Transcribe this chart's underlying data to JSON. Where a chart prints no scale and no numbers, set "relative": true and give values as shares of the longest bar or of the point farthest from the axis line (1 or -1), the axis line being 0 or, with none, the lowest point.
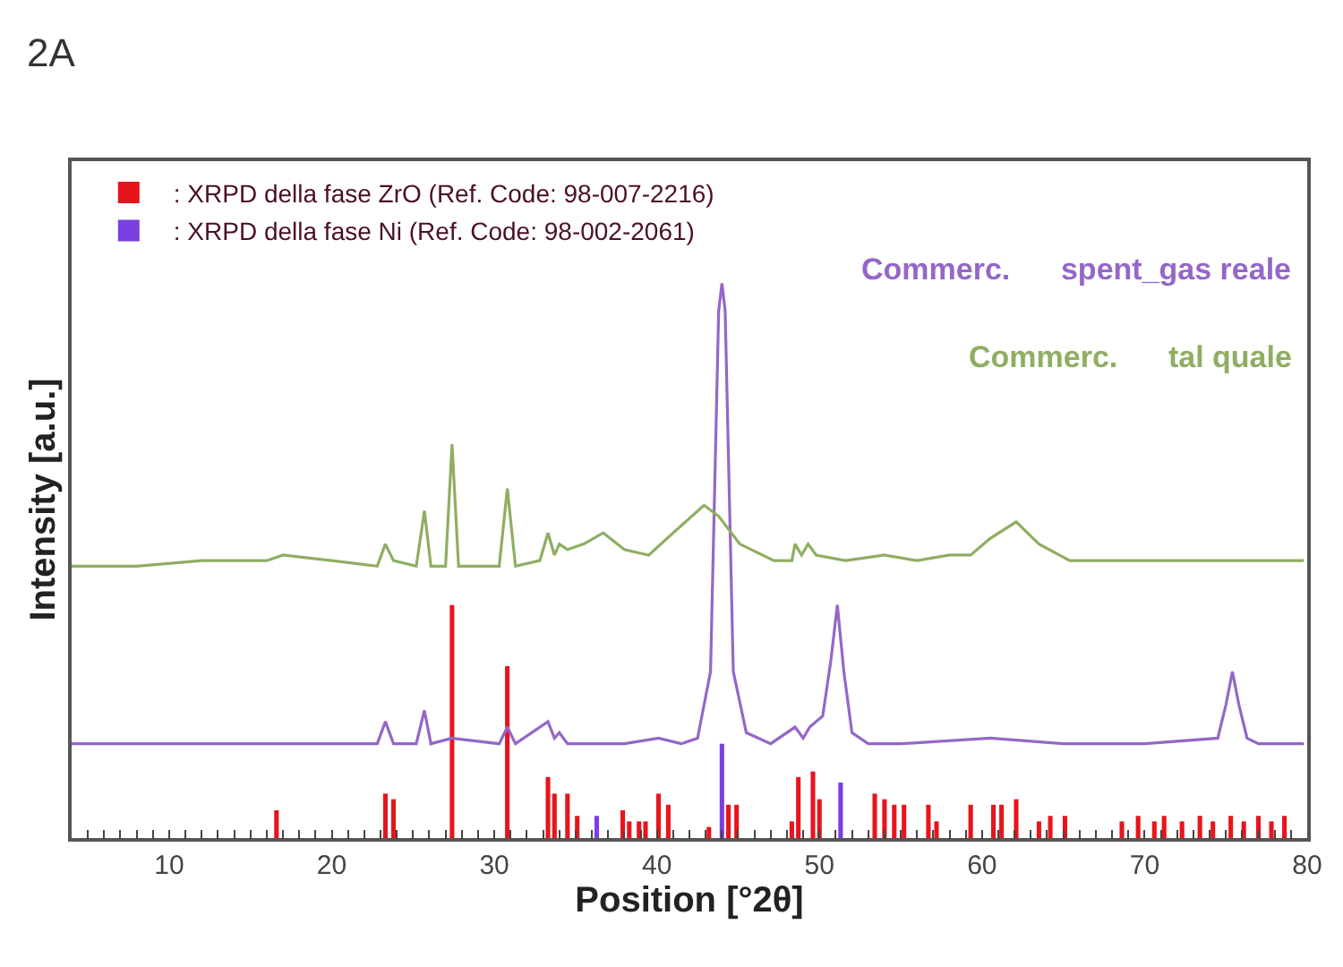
{
  "chart_data": {
    "type": "line",
    "title": "2A",
    "xlabel": "Position [°2θ]",
    "ylabel": "Intensity [a.u.]",
    "relative": true,
    "xlim": [
      4,
      80
    ],
    "xticks": [
      {
        "value": 5,
        "label": null
      },
      {
        "value": 6,
        "label": null
      },
      {
        "value": 7,
        "label": null
      },
      {
        "value": 8,
        "label": null
      },
      {
        "value": 9,
        "label": null
      },
      10,
      {
        "value": 11,
        "label": null
      },
      {
        "value": 12,
        "label": null
      },
      {
        "value": 13,
        "label": null
      },
      {
        "value": 14,
        "label": null
      },
      {
        "value": 15,
        "label": null
      },
      {
        "value": 16,
        "label": null
      },
      {
        "value": 17,
        "label": null
      },
      {
        "value": 18,
        "label": null
      },
      {
        "value": 19,
        "label": null
      },
      20,
      {
        "value": 21,
        "label": null
      },
      {
        "value": 22,
        "label": null
      },
      {
        "value": 23,
        "label": null
      },
      {
        "value": 24,
        "label": null
      },
      {
        "value": 25,
        "label": null
      },
      {
        "value": 26,
        "label": null
      },
      {
        "value": 27,
        "label": null
      },
      {
        "value": 28,
        "label": null
      },
      {
        "value": 29,
        "label": null
      },
      30,
      {
        "value": 31,
        "label": null
      },
      {
        "value": 32,
        "label": null
      },
      {
        "value": 33,
        "label": null
      },
      {
        "value": 34,
        "label": null
      },
      {
        "value": 35,
        "label": null
      },
      {
        "value": 36,
        "label": null
      },
      {
        "value": 37,
        "label": null
      },
      {
        "value": 38,
        "label": null
      },
      {
        "value": 39,
        "label": null
      },
      40,
      {
        "value": 41,
        "label": null
      },
      {
        "value": 42,
        "label": null
      },
      {
        "value": 43,
        "label": null
      },
      {
        "value": 44,
        "label": null
      },
      {
        "value": 45,
        "label": null
      },
      {
        "value": 46,
        "label": null
      },
      {
        "value": 47,
        "label": null
      },
      {
        "value": 48,
        "label": null
      },
      {
        "value": 49,
        "label": null
      },
      50,
      {
        "value": 51,
        "label": null
      },
      {
        "value": 52,
        "label": null
      },
      {
        "value": 53,
        "label": null
      },
      {
        "value": 54,
        "label": null
      },
      {
        "value": 55,
        "label": null
      },
      {
        "value": 56,
        "label": null
      },
      {
        "value": 57,
        "label": null
      },
      {
        "value": 58,
        "label": null
      },
      {
        "value": 59,
        "label": null
      },
      60,
      {
        "value": 61,
        "label": null
      },
      {
        "value": 62,
        "label": null
      },
      {
        "value": 63,
        "label": null
      },
      {
        "value": 64,
        "label": null
      },
      {
        "value": 65,
        "label": null
      },
      {
        "value": 66,
        "label": null
      },
      {
        "value": 67,
        "label": null
      },
      {
        "value": 68,
        "label": null
      },
      {
        "value": 69,
        "label": null
      },
      70,
      {
        "value": 71,
        "label": null
      },
      {
        "value": 72,
        "label": null
      },
      {
        "value": 73,
        "label": null
      },
      {
        "value": 74,
        "label": null
      },
      {
        "value": 75,
        "label": null
      },
      {
        "value": 76,
        "label": null
      },
      {
        "value": 77,
        "label": null
      },
      {
        "value": 78,
        "label": null
      },
      {
        "value": 79,
        "label": null
      },
      80
    ],
    "legend": "top left",
    "series": [
      {
        "type": "bar",
        "name": ": XRPD della fase ZrO (Ref. Code: 98-007-2216)",
        "color": "#e8141c",
        "x": [
          16.6,
          23.3,
          23.8,
          27.4,
          30.8,
          33.3,
          33.7,
          34.5,
          35.1,
          37.9,
          38.3,
          38.9,
          39.3,
          40.1,
          40.7,
          43.2,
          44.4,
          44.9,
          48.3,
          48.7,
          49.6,
          50.0,
          53.4,
          54.0,
          54.6,
          55.2,
          56.7,
          57.2,
          59.3,
          60.7,
          61.2,
          62.1,
          63.5,
          64.2,
          65.1,
          68.6,
          69.6,
          70.6,
          71.2,
          72.3,
          73.4,
          74.2,
          75.3,
          76.1,
          77.0,
          77.8,
          78.6
        ],
        "values": [
          0.05,
          0.08,
          0.07,
          0.42,
          0.31,
          0.11,
          0.08,
          0.08,
          0.04,
          0.05,
          0.03,
          0.03,
          0.03,
          0.08,
          0.06,
          0.02,
          0.06,
          0.06,
          0.03,
          0.11,
          0.12,
          0.07,
          0.08,
          0.07,
          0.06,
          0.06,
          0.06,
          0.03,
          0.06,
          0.06,
          0.06,
          0.07,
          0.03,
          0.04,
          0.04,
          0.03,
          0.04,
          0.03,
          0.04,
          0.03,
          0.04,
          0.03,
          0.04,
          0.03,
          0.04,
          0.03,
          0.04
        ]
      },
      {
        "type": "bar",
        "name": ": XRPD della fase Ni (Ref. Code: 98-002-2061)",
        "color": "#7b3fe0",
        "x": [
          36.3,
          44.0,
          51.3
        ],
        "values": [
          0.04,
          0.17,
          0.1
        ]
      },
      {
        "name": "Commerc.      spent_gas reale",
        "color": "#9467c8",
        "x": [
          4,
          10,
          16,
          20,
          22.8,
          23.3,
          23.8,
          25.2,
          25.7,
          26.1,
          27.4,
          30.3,
          30.8,
          31.3,
          33.3,
          33.7,
          34.0,
          34.5,
          38,
          40.1,
          41.5,
          42.5,
          43.3,
          43.8,
          44.0,
          44.2,
          44.7,
          45.5,
          47,
          48.5,
          49.0,
          49.4,
          50.2,
          50.7,
          51.1,
          51.5,
          52,
          53,
          55,
          60.5,
          65,
          70,
          74.5,
          75.0,
          75.4,
          75.8,
          76.3,
          77,
          79.8
        ],
        "values": [
          0.17,
          0.17,
          0.17,
          0.17,
          0.17,
          0.21,
          0.17,
          0.17,
          0.23,
          0.17,
          0.18,
          0.17,
          0.2,
          0.17,
          0.21,
          0.18,
          0.19,
          0.17,
          0.17,
          0.18,
          0.17,
          0.18,
          0.3,
          0.95,
          1,
          0.95,
          0.3,
          0.19,
          0.17,
          0.2,
          0.18,
          0.2,
          0.22,
          0.32,
          0.42,
          0.3,
          0.19,
          0.17,
          0.17,
          0.18,
          0.17,
          0.17,
          0.18,
          0.24,
          0.3,
          0.24,
          0.18,
          0.17,
          0.17
        ]
      },
      {
        "name": "Commerc.      tal quale",
        "color": "#8fae62",
        "x": [
          4,
          8,
          12,
          16,
          17,
          20,
          22.8,
          23.3,
          23.8,
          25.2,
          25.7,
          26.1,
          27.0,
          27.4,
          27.8,
          30.3,
          30.8,
          31.3,
          32.8,
          33.3,
          33.7,
          34.0,
          34.5,
          35.5,
          36.7,
          38,
          39.5,
          41,
          42.9,
          43.8,
          45.1,
          47.2,
          48.3,
          48.5,
          48.9,
          49.3,
          49.8,
          51.6,
          54,
          56,
          58,
          59.3,
          60.5,
          62.1,
          63.5,
          65.4,
          70,
          74,
          79.8
        ],
        "values": [
          0.49,
          0.49,
          0.5,
          0.5,
          0.51,
          0.5,
          0.49,
          0.53,
          0.5,
          0.49,
          0.59,
          0.49,
          0.49,
          0.71,
          0.49,
          0.49,
          0.63,
          0.49,
          0.5,
          0.55,
          0.51,
          0.53,
          0.52,
          0.53,
          0.55,
          0.52,
          0.51,
          0.55,
          0.6,
          0.58,
          0.53,
          0.5,
          0.5,
          0.53,
          0.51,
          0.53,
          0.51,
          0.5,
          0.51,
          0.5,
          0.51,
          0.51,
          0.54,
          0.57,
          0.53,
          0.5,
          0.5,
          0.5,
          0.5
        ]
      }
    ]
  }
}
